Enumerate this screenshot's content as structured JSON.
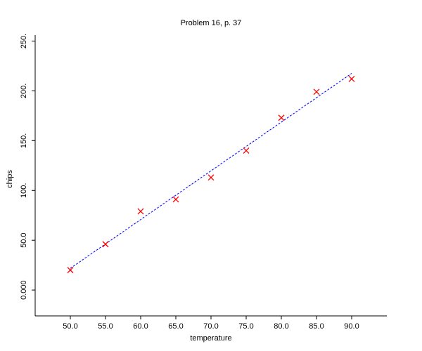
{
  "chart_data": {
    "type": "scatter",
    "title": "Problem 16, p. 37",
    "x_label": "temperature",
    "y_label": "chips",
    "x": [
      50,
      55,
      60,
      65,
      70,
      75,
      80,
      85,
      90
    ],
    "series": [
      {
        "style": "points",
        "marker": "x",
        "color": "#ff0000",
        "values": [
          20,
          46,
          79,
          91,
          113,
          140,
          173,
          199,
          212
        ]
      },
      {
        "style": "dashed-line",
        "color": "#0000ff",
        "x": [
          50,
          90
        ],
        "values": [
          21.8,
          217.6
        ]
      }
    ],
    "xlim": [
      45,
      95
    ],
    "ylim": [
      -26,
      256
    ],
    "xticks": [
      {
        "value": 50,
        "label": "50.0"
      },
      {
        "value": 55,
        "label": "55.0"
      },
      {
        "value": 60,
        "label": "60.0"
      },
      {
        "value": 65,
        "label": "65.0"
      },
      {
        "value": 70,
        "label": "70.0"
      },
      {
        "value": 75,
        "label": "75.0"
      },
      {
        "value": 80,
        "label": "80.0"
      },
      {
        "value": 85,
        "label": "85.0"
      },
      {
        "value": 90,
        "label": "90.0"
      }
    ],
    "yticks": [
      {
        "value": 0,
        "label": "0.000"
      },
      {
        "value": 50,
        "label": "50.0"
      },
      {
        "value": 100,
        "label": "100."
      },
      {
        "value": 150,
        "label": "150."
      },
      {
        "value": 200,
        "label": "200."
      },
      {
        "value": 250,
        "label": "250."
      }
    ],
    "grid": false
  }
}
